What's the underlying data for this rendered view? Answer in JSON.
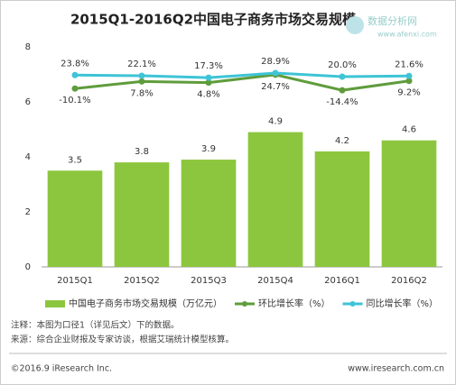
{
  "chart_data": {
    "type": "bar",
    "title": "2015Q1-2016Q2中国电子商务市场交易规模",
    "categories": [
      "2015Q1",
      "2015Q2",
      "2015Q3",
      "2015Q4",
      "2016Q1",
      "2016Q2"
    ],
    "series": [
      {
        "name": "中国电子商务市场交易规模（万亿元）",
        "type": "bar",
        "color": "#8cc63e",
        "values": [
          3.5,
          3.8,
          3.9,
          4.9,
          4.2,
          4.6
        ]
      },
      {
        "name": "环比增长率（%）",
        "type": "line",
        "axis": "y2",
        "color": "#5f9c3c",
        "values": [
          -10.1,
          7.8,
          4.8,
          24.7,
          -14.4,
          9.2
        ],
        "value_labels": [
          "-10.1%",
          "7.8%",
          "4.8%",
          "24.7%",
          "-14.4%",
          "9.2%"
        ]
      },
      {
        "name": "同比增长率（%）",
        "type": "line",
        "axis": "y2",
        "color": "#3ec4d6",
        "values": [
          23.8,
          22.1,
          17.3,
          28.9,
          20.0,
          21.6
        ],
        "value_labels": [
          "23.8%",
          "22.1%",
          "17.3%",
          "28.9%",
          "20.0%",
          "21.6%"
        ]
      }
    ],
    "ylim": [
      0,
      8
    ],
    "yticks": [
      0,
      2,
      4,
      6,
      8
    ],
    "y2lim": [
      -460,
      95
    ],
    "grid": false,
    "notes": [
      "注释：本图为口径1（详见后文）下的数据。",
      "来源：综合企业财报及专家访谈，根据艾瑞统计模型核算。"
    ],
    "copyright": "©2016.9 iResearch Inc.",
    "website": "www.iresearch.com.cn",
    "watermark": [
      "数据分析网",
      "www.afenxi.com"
    ]
  }
}
